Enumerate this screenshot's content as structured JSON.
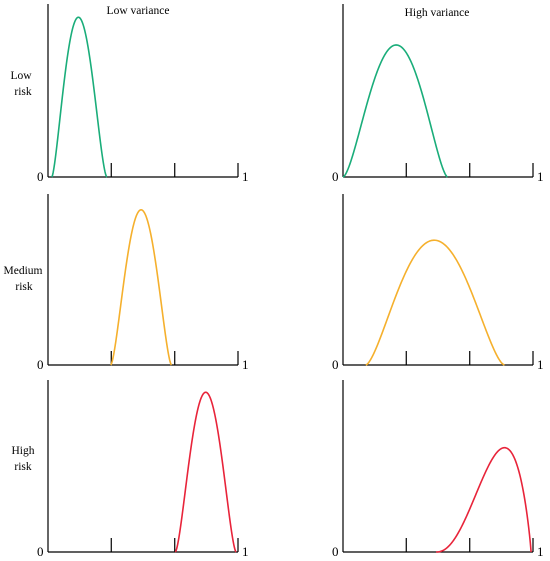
{
  "col_headers": [
    "Low variance",
    "High variance"
  ],
  "row_labels": [
    [
      "Low",
      "risk"
    ],
    [
      "Medium",
      "risk"
    ],
    [
      "High",
      "risk"
    ]
  ],
  "axis": {
    "min_label": "0",
    "max_label": "1"
  },
  "colors": {
    "low": "#1aad7a",
    "medium": "#f5b02d",
    "high": "#e8243a",
    "axis": "#000000"
  },
  "chart_data": {
    "type": "line",
    "x_range": [
      0,
      1
    ],
    "x_ticks": [
      0,
      0.333,
      0.667,
      1
    ],
    "panels": [
      {
        "row": 0,
        "col": 0,
        "risk": "Low",
        "variance": "Low",
        "color": "low",
        "x_support": [
          0.02,
          0.31
        ],
        "mode": 0.16,
        "peak": 0.98
      },
      {
        "row": 0,
        "col": 1,
        "risk": "Low",
        "variance": "High",
        "color": "low",
        "x_support": [
          0.0,
          0.55
        ],
        "mode": 0.28,
        "peak": 0.81
      },
      {
        "row": 1,
        "col": 0,
        "risk": "Medium",
        "variance": "Low",
        "color": "medium",
        "x_support": [
          0.33,
          0.65
        ],
        "mode": 0.49,
        "peak": 0.97
      },
      {
        "row": 1,
        "col": 1,
        "risk": "Medium",
        "variance": "High",
        "color": "medium",
        "x_support": [
          0.12,
          0.85
        ],
        "mode": 0.48,
        "peak": 0.78
      },
      {
        "row": 2,
        "col": 0,
        "risk": "High",
        "variance": "Low",
        "color": "high",
        "x_support": [
          0.67,
          0.99
        ],
        "mode": 0.83,
        "peak": 0.98
      },
      {
        "row": 2,
        "col": 1,
        "risk": "High",
        "variance": "High",
        "color": "high",
        "x_support": [
          0.49,
          0.99
        ],
        "mode": 0.85,
        "peak": 0.64
      }
    ]
  }
}
